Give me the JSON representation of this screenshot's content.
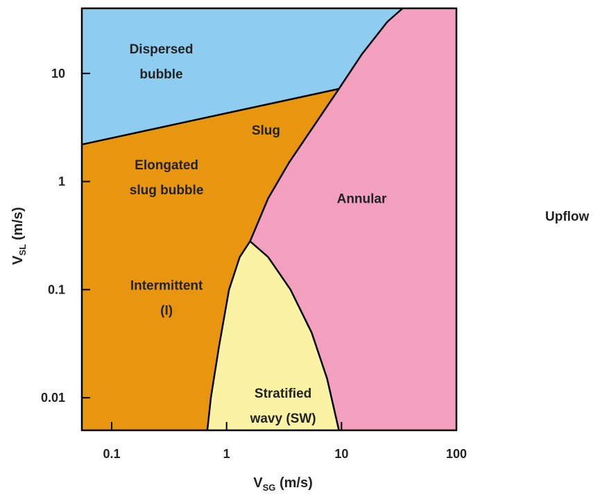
{
  "chart_data": {
    "type": "area",
    "title": "",
    "x_scale": "log",
    "y_scale": "log",
    "xlim": [
      0.055,
      100
    ],
    "ylim": [
      0.005,
      40
    ],
    "xlabel": {
      "main": "V",
      "sub": "SG",
      "unit": " (m/s)"
    },
    "ylabel": {
      "main": "V",
      "sub": "SL",
      "unit": " (m/s)"
    },
    "x_ticks": [
      {
        "value": 0.1,
        "label": "0.1"
      },
      {
        "value": 1,
        "label": "1"
      },
      {
        "value": 10,
        "label": "10"
      },
      {
        "value": 100,
        "label": "100"
      }
    ],
    "y_ticks": [
      {
        "value": 0.01,
        "label": "0.01"
      },
      {
        "value": 0.1,
        "label": "0.1"
      },
      {
        "value": 1,
        "label": "1"
      },
      {
        "value": 10,
        "label": "10"
      }
    ],
    "side_label": "Upflow",
    "colors": {
      "dispersed_bubble": "#8ecdf0",
      "intermittent": "#e8950f",
      "annular": "#f2a0bd",
      "stratified_wavy": "#fbf3a4",
      "boundary": "#000000"
    },
    "regions": [
      {
        "name": "dispersed_bubble",
        "lines": [
          "Dispersed",
          "bubble"
        ],
        "label_at": {
          "x": 0.27,
          "y": 13
        }
      },
      {
        "name": "slug",
        "lines": [
          "Slug"
        ],
        "label_at": {
          "x": 2.2,
          "y": 3.0
        }
      },
      {
        "name": "elongated_slug_bubble",
        "lines": [
          "Elongated",
          "slug bubble"
        ],
        "label_at": {
          "x": 0.3,
          "y": 1.1
        }
      },
      {
        "name": "intermittent",
        "lines": [
          "Intermittent",
          "(I)"
        ],
        "label_at": {
          "x": 0.3,
          "y": 0.085
        }
      },
      {
        "name": "annular",
        "lines": [
          "Annular"
        ],
        "label_at": {
          "x": 15,
          "y": 0.7
        }
      },
      {
        "name": "stratified_wavy",
        "lines": [
          "Stratified",
          "wavy (SW)"
        ],
        "label_at": {
          "x": 3.1,
          "y": 0.0085
        }
      }
    ],
    "boundaries": {
      "dispersed_top": [
        [
          0.055,
          2.2
        ],
        [
          9.5,
          7.2
        ]
      ],
      "annular_transition": [
        [
          1.6,
          0.28
        ],
        [
          2.3,
          0.7
        ],
        [
          3.5,
          1.5
        ],
        [
          6,
          3.5
        ],
        [
          9.5,
          7.2
        ],
        [
          15,
          15
        ],
        [
          25,
          30
        ],
        [
          34,
          40
        ]
      ],
      "stratified_left": [
        [
          0.68,
          0.005
        ],
        [
          0.73,
          0.01
        ],
        [
          0.86,
          0.03
        ],
        [
          1.05,
          0.1
        ],
        [
          1.3,
          0.2
        ],
        [
          1.6,
          0.28
        ]
      ],
      "stratified_right": [
        [
          1.6,
          0.28
        ],
        [
          2.3,
          0.2
        ],
        [
          3.6,
          0.1
        ],
        [
          5.5,
          0.04
        ],
        [
          7.5,
          0.015
        ],
        [
          9.5,
          0.005
        ]
      ]
    }
  }
}
